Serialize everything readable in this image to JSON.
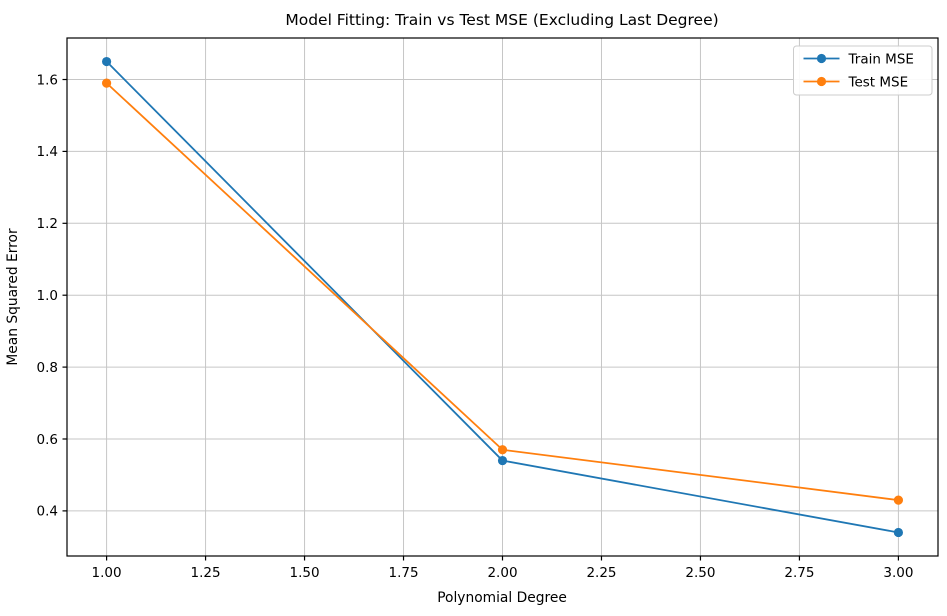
{
  "chart_data": {
    "type": "line",
    "title": "Model Fitting: Train vs Test MSE (Excluding Last Degree)",
    "xlabel": "Polynomial Degree",
    "ylabel": "Mean Squared Error",
    "x": [
      1,
      2,
      3
    ],
    "series": [
      {
        "name": "Train MSE",
        "color": "#1f77b4",
        "values": [
          1.65,
          0.54,
          0.34
        ]
      },
      {
        "name": "Test MSE",
        "color": "#ff7f0e",
        "values": [
          1.59,
          0.57,
          0.43
        ]
      }
    ],
    "xlim": [
      0.9,
      3.1
    ],
    "ylim": [
      0.2745,
      1.7155
    ],
    "xticks": [
      "1.00",
      "1.25",
      "1.50",
      "1.75",
      "2.00",
      "2.25",
      "2.50",
      "2.75",
      "3.00"
    ],
    "xtick_values": [
      1.0,
      1.25,
      1.5,
      1.75,
      2.0,
      2.25,
      2.5,
      2.75,
      3.0
    ],
    "yticks": [
      "0.4",
      "0.6",
      "0.8",
      "1.0",
      "1.2",
      "1.4",
      "1.6"
    ],
    "ytick_values": [
      0.4,
      0.6,
      0.8,
      1.0,
      1.2,
      1.4,
      1.6
    ],
    "grid": true,
    "grid_color": "#c6c6c6",
    "spine_color": "#000000",
    "background_color": "#ffffff",
    "legend_position": "upper right",
    "marker": "o",
    "legend": {
      "labels": [
        "Train MSE",
        "Test MSE"
      ]
    }
  }
}
